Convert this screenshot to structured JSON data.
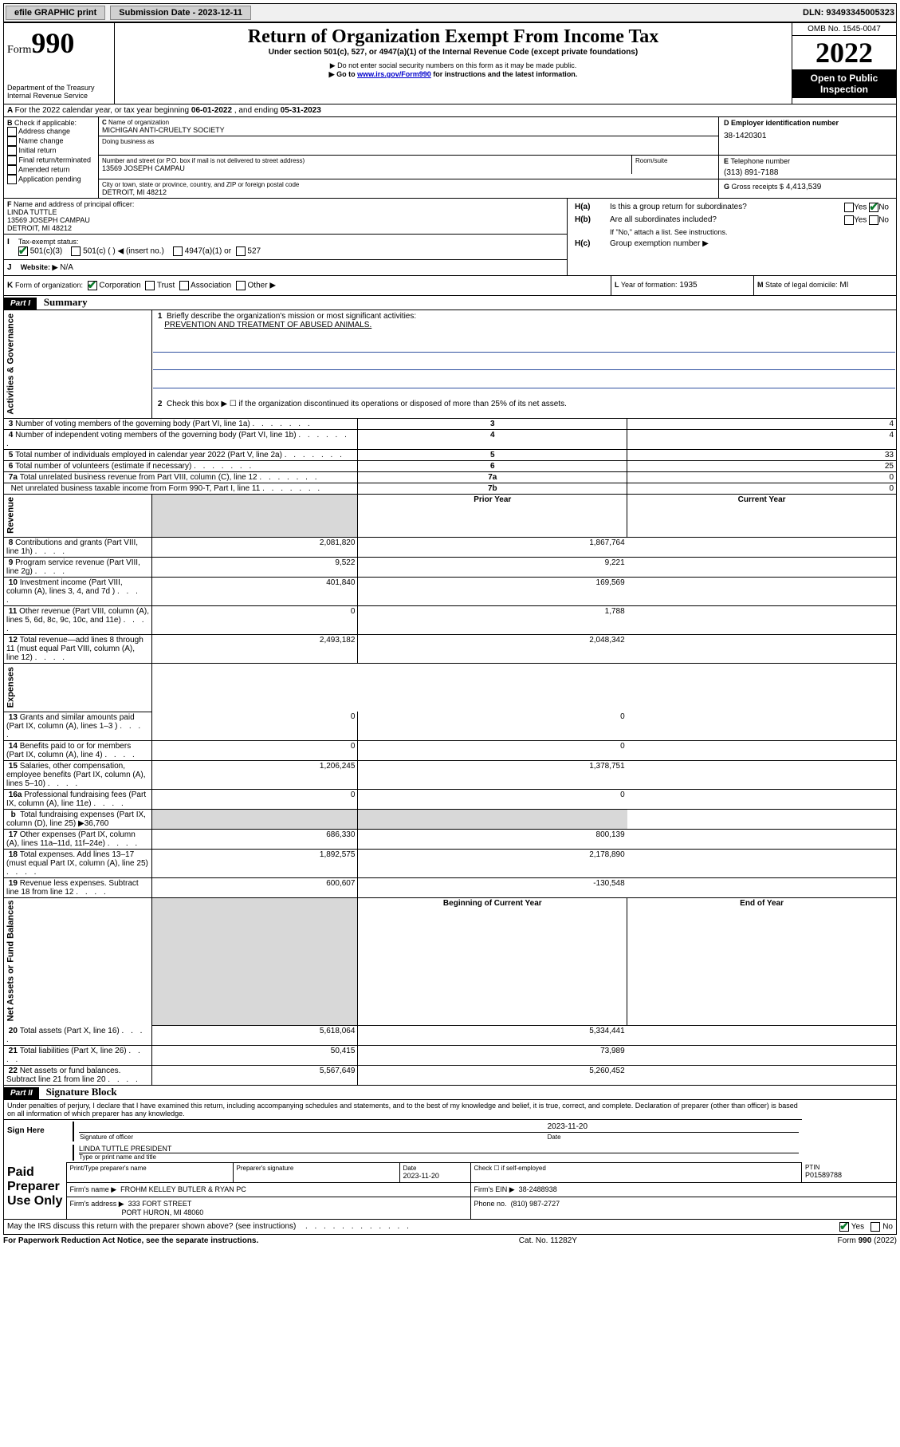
{
  "top": {
    "efile": "efile GRAPHIC print",
    "submission_label": "Submission Date - 2023-12-11",
    "dln_label": "DLN: 93493345005323"
  },
  "header": {
    "form_label": "Form",
    "form_num": "990",
    "dept": "Department of the Treasury",
    "irs": "Internal Revenue Service",
    "title": "Return of Organization Exempt From Income Tax",
    "sub1": "Under section 501(c), 527, or 4947(a)(1) of the Internal Revenue Code (except private foundations)",
    "sub2": "▶ Do not enter social security numbers on this form as it may be made public.",
    "sub3_pre": "▶ Go to ",
    "sub3_link": "www.irs.gov/Form990",
    "sub3_post": " for instructions and the latest information.",
    "omb": "OMB No. 1545-0047",
    "year": "2022",
    "open": "Open to Public Inspection"
  },
  "A": {
    "text_pre": "For the 2022 calendar year, or tax year beginning ",
    "begin": "06-01-2022",
    "mid": " , and ending ",
    "end": "05-31-2023"
  },
  "B": {
    "label": "Check if applicable:",
    "opts": [
      "Address change",
      "Name change",
      "Initial return",
      "Final return/terminated",
      "Amended return",
      "Application pending"
    ]
  },
  "C": {
    "name_label": "Name of organization",
    "name": "MICHIGAN ANTI-CRUELTY SOCIETY",
    "dba_label": "Doing business as",
    "street_label": "Number and street (or P.O. box if mail is not delivered to street address)",
    "room_label": "Room/suite",
    "street": "13569 JOSEPH CAMPAU",
    "city_label": "City or town, state or province, country, and ZIP or foreign postal code",
    "city": "DETROIT, MI  48212"
  },
  "D": {
    "label": "Employer identification number",
    "val": "38-1420301"
  },
  "E": {
    "label": "Telephone number",
    "val": "(313) 891-7188"
  },
  "G": {
    "label": "Gross receipts $",
    "val": "4,413,539"
  },
  "F": {
    "label": "Name and address of principal officer:",
    "name": "LINDA TUTTLE",
    "addr1": "13569 JOSEPH CAMPAU",
    "addr2": "DETROIT, MI  48212"
  },
  "H": {
    "a": "Is this a group return for subordinates?",
    "b": "Are all subordinates included?",
    "note": "If \"No,\" attach a list. See instructions.",
    "c": "Group exemption number ▶",
    "yes": "Yes",
    "no": "No"
  },
  "I": {
    "label": "Tax-exempt status:",
    "o1": "501(c)(3)",
    "o2": "501(c) (   ) ◀ (insert no.)",
    "o3": "4947(a)(1) or",
    "o4": "527"
  },
  "J": {
    "label": "Website: ▶",
    "val": "N/A"
  },
  "K": {
    "label": "Form of organization:",
    "o1": "Corporation",
    "o2": "Trust",
    "o3": "Association",
    "o4": "Other ▶"
  },
  "L": {
    "label": "Year of formation:",
    "val": "1935"
  },
  "M": {
    "label": "State of legal domicile:",
    "val": "MI"
  },
  "part1": {
    "hdr": "Part I",
    "title": "Summary",
    "l1_label": "Briefly describe the organization's mission or most significant activities:",
    "l1_text": "PREVENTION AND TREATMENT OF ABUSED ANIMALS.",
    "l2": "Check this box ▶ ☐  if the organization discontinued its operations or disposed of more than 25% of its net assets.",
    "sections": {
      "activities": "Activities & Governance",
      "revenue": "Revenue",
      "expenses": "Expenses",
      "netassets": "Net Assets or Fund Balances"
    },
    "col_prior": "Prior Year",
    "col_current": "Current Year",
    "col_begin": "Beginning of Current Year",
    "col_end": "End of Year",
    "rows_gov": [
      {
        "n": "3",
        "d": "Number of voting members of the governing body (Part VI, line 1a)",
        "box": "3",
        "v": "4"
      },
      {
        "n": "4",
        "d": "Number of independent voting members of the governing body (Part VI, line 1b)",
        "box": "4",
        "v": "4"
      },
      {
        "n": "5",
        "d": "Total number of individuals employed in calendar year 2022 (Part V, line 2a)",
        "box": "5",
        "v": "33"
      },
      {
        "n": "6",
        "d": "Total number of volunteers (estimate if necessary)",
        "box": "6",
        "v": "25"
      },
      {
        "n": "7a",
        "d": "Total unrelated business revenue from Part VIII, column (C), line 12",
        "box": "7a",
        "v": "0"
      },
      {
        "n": "",
        "d": "Net unrelated business taxable income from Form 990-T, Part I, line 11",
        "box": "7b",
        "v": "0"
      }
    ],
    "rows_rev": [
      {
        "n": "8",
        "d": "Contributions and grants (Part VIII, line 1h)",
        "p": "2,081,820",
        "c": "1,867,764"
      },
      {
        "n": "9",
        "d": "Program service revenue (Part VIII, line 2g)",
        "p": "9,522",
        "c": "9,221"
      },
      {
        "n": "10",
        "d": "Investment income (Part VIII, column (A), lines 3, 4, and 7d )",
        "p": "401,840",
        "c": "169,569"
      },
      {
        "n": "11",
        "d": "Other revenue (Part VIII, column (A), lines 5, 6d, 8c, 9c, 10c, and 11e)",
        "p": "0",
        "c": "1,788"
      },
      {
        "n": "12",
        "d": "Total revenue—add lines 8 through 11 (must equal Part VIII, column (A), line 12)",
        "p": "2,493,182",
        "c": "2,048,342"
      }
    ],
    "rows_exp": [
      {
        "n": "13",
        "d": "Grants and similar amounts paid (Part IX, column (A), lines 1–3 )",
        "p": "0",
        "c": "0"
      },
      {
        "n": "14",
        "d": "Benefits paid to or for members (Part IX, column (A), line 4)",
        "p": "0",
        "c": "0"
      },
      {
        "n": "15",
        "d": "Salaries, other compensation, employee benefits (Part IX, column (A), lines 5–10)",
        "p": "1,206,245",
        "c": "1,378,751"
      },
      {
        "n": "16a",
        "d": "Professional fundraising fees (Part IX, column (A), line 11e)",
        "p": "0",
        "c": "0"
      }
    ],
    "row_16b_pre": "Total fundraising expenses (Part IX, column (D), line 25) ▶",
    "row_16b_val": "36,760",
    "rows_exp2": [
      {
        "n": "17",
        "d": "Other expenses (Part IX, column (A), lines 11a–11d, 11f–24e)",
        "p": "686,330",
        "c": "800,139"
      },
      {
        "n": "18",
        "d": "Total expenses. Add lines 13–17 (must equal Part IX, column (A), line 25)",
        "p": "1,892,575",
        "c": "2,178,890"
      },
      {
        "n": "19",
        "d": "Revenue less expenses. Subtract line 18 from line 12",
        "p": "600,607",
        "c": "-130,548"
      }
    ],
    "rows_net": [
      {
        "n": "20",
        "d": "Total assets (Part X, line 16)",
        "p": "5,618,064",
        "c": "5,334,441"
      },
      {
        "n": "21",
        "d": "Total liabilities (Part X, line 26)",
        "p": "50,415",
        "c": "73,989"
      },
      {
        "n": "22",
        "d": "Net assets or fund balances. Subtract line 21 from line 20",
        "p": "5,567,649",
        "c": "5,260,452"
      }
    ]
  },
  "part2": {
    "hdr": "Part II",
    "title": "Signature Block",
    "decl": "Under penalties of perjury, I declare that I have examined this return, including accompanying schedules and statements, and to the best of my knowledge and belief, it is true, correct, and complete. Declaration of preparer (other than officer) is based on all information of which preparer has any knowledge.",
    "sign_here": "Sign Here",
    "sig_officer": "Signature of officer",
    "sig_date": "2023-11-20",
    "date_label": "Date",
    "officer_name": "LINDA TUTTLE  PRESIDENT",
    "officer_sub": "Type or print name and title",
    "paid": "Paid Preparer Use Only",
    "prep_name_label": "Print/Type preparer's name",
    "prep_sig_label": "Preparer's signature",
    "prep_date_label": "Date",
    "prep_date": "2023-11-20",
    "check_self": "Check ☐ if self-employed",
    "ptin_label": "PTIN",
    "ptin": "P01589788",
    "firm_name_label": "Firm's name    ▶",
    "firm_name": "FROHM KELLEY BUTLER & RYAN PC",
    "firm_ein_label": "Firm's EIN ▶",
    "firm_ein": "38-2488938",
    "firm_addr_label": "Firm's address ▶",
    "firm_addr1": "333 FORT STREET",
    "firm_addr2": "PORT HURON, MI  48060",
    "phone_label": "Phone no.",
    "phone": "(810) 987-2727",
    "discuss": "May the IRS discuss this return with the preparer shown above? (see instructions)"
  },
  "footer": {
    "left": "For Paperwork Reduction Act Notice, see the separate instructions.",
    "mid": "Cat. No. 11282Y",
    "right_pre": "Form ",
    "right_b": "990",
    "right_post": " (2022)"
  }
}
